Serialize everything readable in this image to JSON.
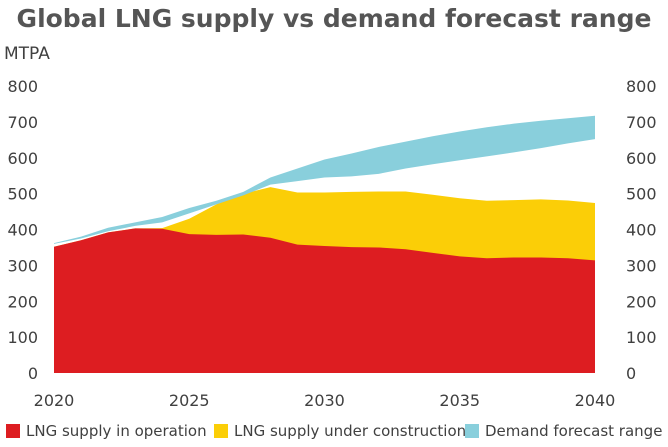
{
  "chart_data": {
    "type": "area",
    "title": "Global LNG supply vs demand forecast range",
    "ylabel": "MTPA",
    "xlabel": "",
    "x": [
      2020,
      2021,
      2022,
      2023,
      2024,
      2025,
      2026,
      2027,
      2028,
      2029,
      2030,
      2031,
      2032,
      2033,
      2034,
      2035,
      2036,
      2037,
      2038,
      2039,
      2040
    ],
    "xlim": [
      2020,
      2040
    ],
    "ylim": [
      0,
      800
    ],
    "x_ticks": [
      2020,
      2025,
      2030,
      2035,
      2040
    ],
    "y_ticks": [
      0,
      100,
      200,
      300,
      400,
      500,
      600,
      700,
      800
    ],
    "grid": false,
    "secondary_y_axis": true,
    "legend_position": "bottom",
    "series": [
      {
        "name": "LNG supply in operation",
        "color": "#dd1d21",
        "values": [
          352,
          370,
          392,
          403,
          402,
          387,
          385,
          386,
          377,
          358,
          354,
          351,
          350,
          345,
          335,
          325,
          320,
          322,
          322,
          320,
          314
        ]
      },
      {
        "name": "LNG supply under construction",
        "color": "#fbce07",
        "note_total": "stacked total (operation + construction)",
        "values": [
          352,
          370,
          392,
          403,
          404,
          430,
          470,
          500,
          518,
          503,
          503,
          505,
          506,
          506,
          497,
          487,
          480,
          482,
          484,
          481,
          474
        ]
      },
      {
        "name": "Demand forecast range",
        "color": "#89cfdc",
        "lower": [
          360,
          375,
          395,
          410,
          420,
          445,
          470,
          495,
          525,
          535,
          545,
          548,
          555,
          570,
          582,
          593,
          604,
          615,
          627,
          640,
          652
        ],
        "upper": [
          362,
          380,
          405,
          420,
          435,
          460,
          480,
          505,
          545,
          570,
          595,
          612,
          630,
          645,
          660,
          673,
          685,
          695,
          703,
          710,
          717
        ]
      }
    ]
  }
}
